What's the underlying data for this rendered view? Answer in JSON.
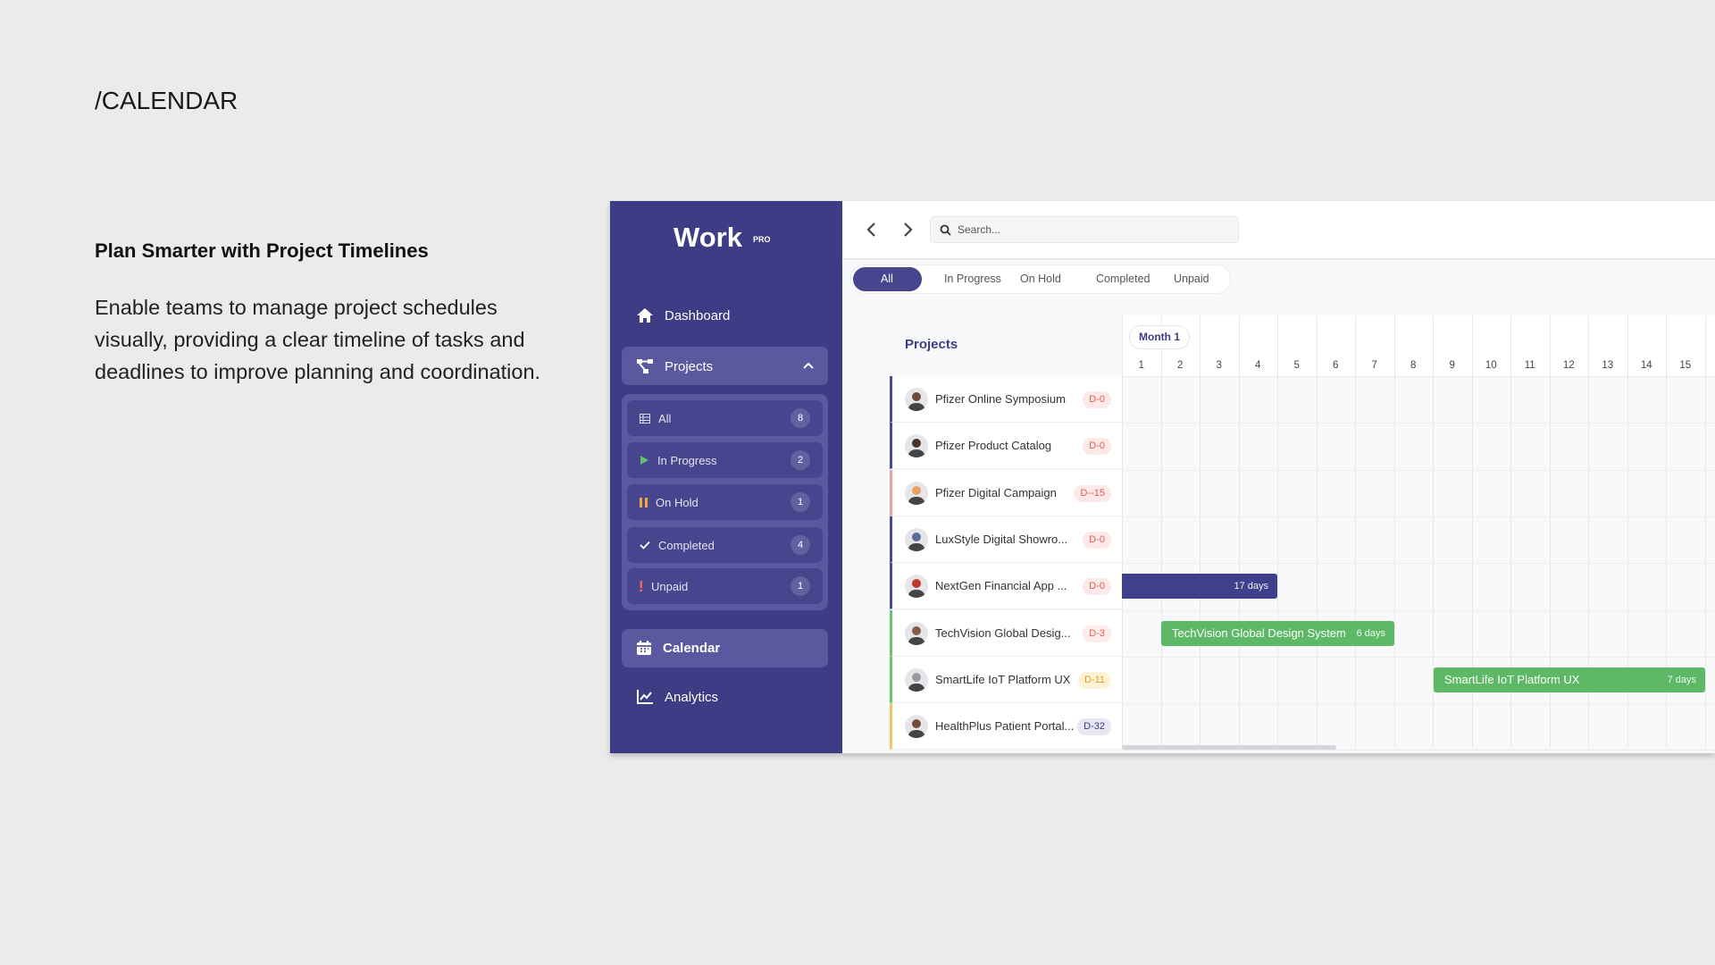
{
  "page_title": "/CALENDAR",
  "intro": {
    "heading": "Plan Smarter with Project Timelines",
    "body": "Enable teams to manage project schedules visually, providing a clear timeline of tasks and deadlines to improve planning and coordination."
  },
  "sidebar": {
    "logo": "Work",
    "logo_badge": "PRO",
    "dashboard": "Dashboard",
    "projects": "Projects",
    "filters": [
      {
        "label": "All",
        "count": "8"
      },
      {
        "label": "In Progress",
        "count": "2"
      },
      {
        "label": "On Hold",
        "count": "1"
      },
      {
        "label": "Completed",
        "count": "4"
      },
      {
        "label": "Unpaid",
        "count": "1"
      }
    ],
    "calendar": "Calendar",
    "analytics": "Analytics"
  },
  "toolbar": {
    "search_placeholder": "Search...",
    "tabs": [
      "All",
      "In Progress",
      "On Hold",
      "Completed",
      "Unpaid"
    ]
  },
  "timeline": {
    "projects_heading": "Projects",
    "month": "Month 1",
    "days": [
      "1",
      "2",
      "3",
      "4",
      "5",
      "6",
      "7",
      "8",
      "9",
      "10",
      "11",
      "12",
      "13",
      "14",
      "15"
    ],
    "projects": [
      {
        "name": "Pfizer Online Symposium",
        "badge": "D-0"
      },
      {
        "name": "Pfizer Product Catalog",
        "badge": "D-0"
      },
      {
        "name": "Pfizer Digital Campaign",
        "badge": "D--15"
      },
      {
        "name": "LuxStyle Digital Showro...",
        "badge": "D-0"
      },
      {
        "name": "NextGen Financial App ...",
        "badge": "D-0"
      },
      {
        "name": "TechVision Global Desig...",
        "badge": "D-3"
      },
      {
        "name": "SmartLife IoT Platform UX",
        "badge": "D-11"
      },
      {
        "name": "HealthPlus Patient Portal...",
        "badge": "D-32"
      }
    ],
    "bars": [
      {
        "duration": "17 days"
      },
      {
        "label": "TechVision Global Design System",
        "duration": "6 days"
      },
      {
        "label": "SmartLife IoT Platform UX",
        "duration": "7 days"
      }
    ]
  }
}
